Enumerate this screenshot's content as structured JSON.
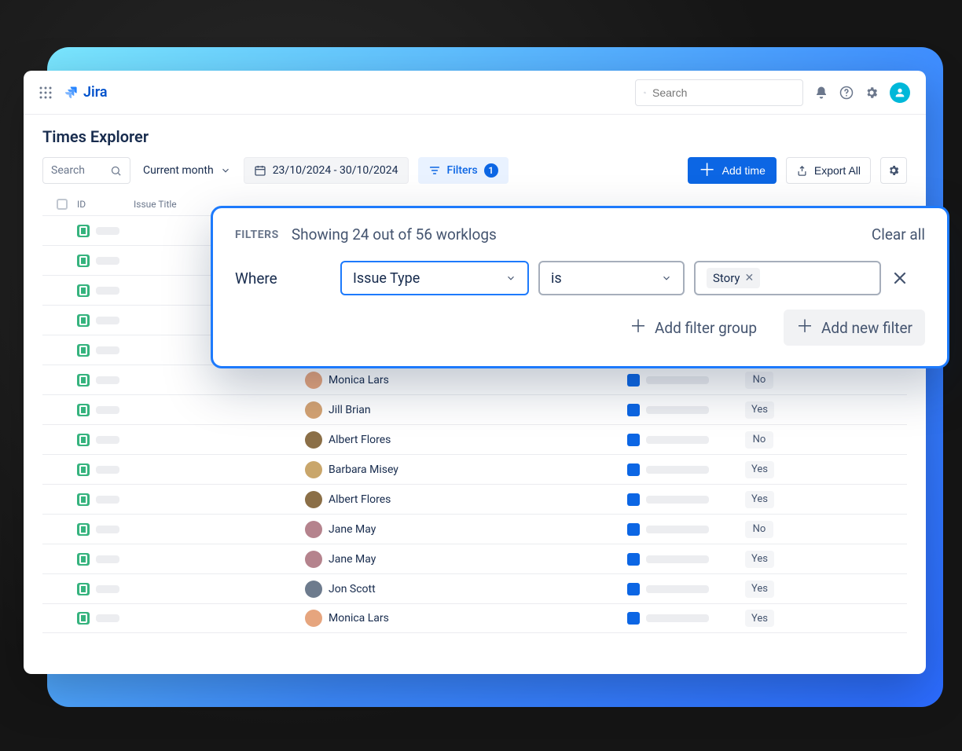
{
  "brand": {
    "name": "Jira"
  },
  "nav": {
    "search_placeholder": "Search"
  },
  "page": {
    "title": "Times Explorer"
  },
  "toolbar": {
    "search_placeholder": "Search",
    "range_selected": "Current month",
    "date_range": "23/10/2024 - 30/10/2024",
    "filters_label": "Filters",
    "filters_count": "1",
    "add_time": "Add time",
    "export_all": "Export All"
  },
  "columns": {
    "id": "ID",
    "title": "Issue Title"
  },
  "filters_popover": {
    "label": "FILTERS",
    "subtitle": "Showing 24 out of 56 worklogs",
    "clear": "Clear all",
    "where": "Where",
    "field": "Issue Type",
    "operator": "is",
    "value": "Story",
    "add_group": "Add filter group",
    "add_filter": "Add new filter"
  },
  "colors": {
    "status_square": "#0c66e4",
    "bar_red": "#d04437",
    "bar_navy": "#42526e",
    "bar_green": "#1f845a",
    "bar_yellow": "#f2c94c"
  },
  "rows": [
    {
      "user": "",
      "yn": "",
      "bar": "",
      "avatar": "#d8b4a0"
    },
    {
      "user": "",
      "yn": "",
      "bar": "",
      "avatar": "#b0c4de"
    },
    {
      "user": "",
      "yn": "",
      "bar": "",
      "avatar": "#deb887"
    },
    {
      "user": "",
      "yn": "",
      "bar": "",
      "avatar": "#8fbc8f"
    },
    {
      "user": "",
      "yn": "",
      "bar": "",
      "avatar": "#cd853f"
    },
    {
      "user": "Monica Lars",
      "yn": "No",
      "bar": "bar_red",
      "avatar": "#e6a57e"
    },
    {
      "user": "Jill Brian",
      "yn": "Yes",
      "bar": "bar_navy",
      "avatar": "#d4a373"
    },
    {
      "user": "Albert Flores",
      "yn": "No",
      "bar": "bar_green",
      "avatar": "#8b6f47"
    },
    {
      "user": "Barbara Misey",
      "yn": "Yes",
      "bar": "bar_yellow",
      "avatar": "#c9a66b"
    },
    {
      "user": "Albert Flores",
      "yn": "Yes",
      "bar": "bar_green",
      "avatar": "#8b6f47"
    },
    {
      "user": "Jane May",
      "yn": "No",
      "bar": "bar_red",
      "avatar": "#b5838d"
    },
    {
      "user": "Jane May",
      "yn": "Yes",
      "bar": "bar_green",
      "avatar": "#b5838d"
    },
    {
      "user": "Jon Scott",
      "yn": "Yes",
      "bar": "bar_yellow",
      "avatar": "#6d7b8d"
    },
    {
      "user": "Monica Lars",
      "yn": "Yes",
      "bar": "bar_green",
      "avatar": "#e6a57e"
    }
  ]
}
